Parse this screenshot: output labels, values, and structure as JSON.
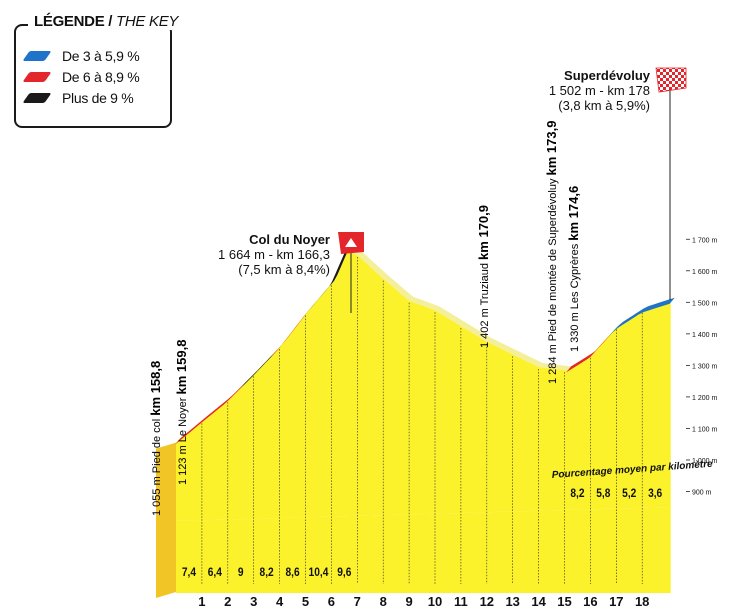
{
  "legend": {
    "title": "LÉGENDE",
    "title_sep": " / ",
    "title_en": "THE KEY",
    "items": [
      {
        "label": "De 3 à 5,9 %",
        "color": "#1f73c8"
      },
      {
        "label": "De 6 à 8,9 %",
        "color": "#e3262b"
      },
      {
        "label": "Plus de 9 %",
        "color": "#1a1a1a"
      }
    ]
  },
  "summits": [
    {
      "name": "Col du Noyer",
      "line1": "1 664 m - km 166,3",
      "line2": "(7,5 km à 8,4%)"
    },
    {
      "name": "Superdévoluy",
      "line1": "1 502 m - km 178",
      "line2": "(3,8 km à 5,9%)"
    }
  ],
  "waypoints": [
    {
      "text": "1 055 m Pied de col ",
      "km": "km 158,8"
    },
    {
      "text": "1 123 m Le Noyer ",
      "km": "km 159,8"
    },
    {
      "text": "1 402 m Truziaud ",
      "km": "km 170,9"
    },
    {
      "text": "1 284 m Pied de montée de Superdévoluy ",
      "km": "km 173,9"
    },
    {
      "text": "1 330 m Les Cyprères ",
      "km": "km 174,6"
    }
  ],
  "avg_label": "Pourcentage moyen par kilomètre",
  "chart_data": {
    "type": "area",
    "x_unit": "km",
    "y_unit": "m",
    "x": [
      0,
      1,
      2,
      3,
      4,
      5,
      6,
      6.55,
      7,
      8,
      9,
      10,
      11,
      12,
      13,
      14,
      15.1,
      16,
      17,
      18,
      19.1
    ],
    "elevation": [
      1055,
      1123,
      1190,
      1272,
      1358,
      1464,
      1560,
      1664,
      1650,
      1575,
      1505,
      1475,
      1425,
      1375,
      1335,
      1295,
      1284,
      1330,
      1420,
      1473,
      1502
    ],
    "km_labels": [
      "1",
      "2",
      "3",
      "4",
      "5",
      "6",
      "7",
      "8",
      "9",
      "10",
      "11",
      "12",
      "13",
      "14",
      "15",
      "16",
      "17",
      "18"
    ],
    "gradients": [
      "7,4",
      "6,4",
      "9",
      "8,2",
      "8,6",
      "10,4",
      "9,6",
      "",
      "",
      "",
      "",
      "",
      "",
      "",
      "",
      "8,2",
      "5,8",
      "5,2",
      "3,6"
    ],
    "y_ticks": [
      {
        "value": 900,
        "label": "900 m"
      },
      {
        "value": 1000,
        "label": "1 000 m"
      },
      {
        "value": 1100,
        "label": "1 100 m"
      },
      {
        "value": 1200,
        "label": "1 200 m"
      },
      {
        "value": 1300,
        "label": "1 300 m"
      },
      {
        "value": 1400,
        "label": "1 400 m"
      },
      {
        "value": 1500,
        "label": "1 500 m"
      },
      {
        "value": 1600,
        "label": "1 600 m"
      },
      {
        "value": 1700,
        "label": "1 700 m"
      }
    ],
    "climb_segments": [
      {
        "from_km": 0,
        "to_km": 2.5,
        "category": "De 6 à 8,9 %"
      },
      {
        "from_km": 2.5,
        "to_km": 3.7,
        "category": "Plus de 9 %"
      },
      {
        "from_km": 3.7,
        "to_km": 5.1,
        "category": "De 6 à 8,9 %"
      },
      {
        "from_km": 5.1,
        "to_km": 6.55,
        "category": "Plus de 9 %"
      },
      {
        "from_km": 15.1,
        "to_km": 16.7,
        "category": "De 6 à 8,9 %"
      },
      {
        "from_km": 16.7,
        "to_km": 19.1,
        "category": "De 3 à 5,9 %"
      }
    ],
    "colors": {
      "fill": "#fbf22c",
      "side": "#f0c525",
      "steep": "#e3262b",
      "very_steep": "#1a1a1a",
      "moderate": "#1f73c8"
    }
  }
}
